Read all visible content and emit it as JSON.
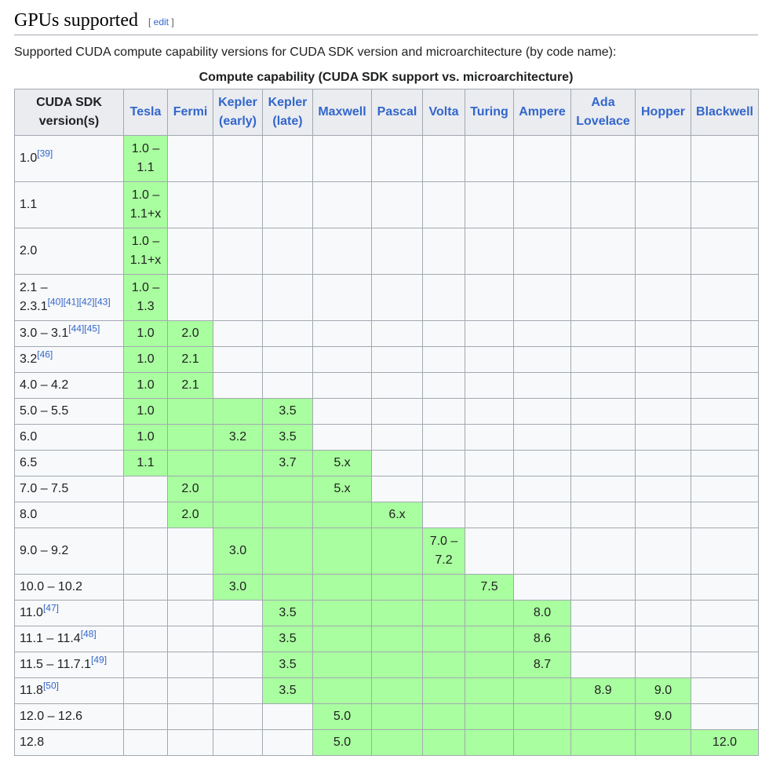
{
  "section": {
    "title": "GPUs supported",
    "edit_open": "[ ",
    "edit_label": "edit",
    "edit_close": " ]"
  },
  "intro": "Supported CUDA compute capability versions for CUDA SDK version and microarchitecture (by code name):",
  "table": {
    "caption": "Compute capability (CUDA SDK support vs. microarchitecture)",
    "header_sdk": [
      "CUDA SDK",
      "version(s)"
    ],
    "architectures": [
      [
        "Tesla"
      ],
      [
        "Fermi"
      ],
      [
        "Kepler",
        "(early)"
      ],
      [
        "Kepler",
        "(late)"
      ],
      [
        "Maxwell"
      ],
      [
        "Pascal"
      ],
      [
        "Volta"
      ],
      [
        "Turing"
      ],
      [
        "Ampere"
      ],
      [
        "Ada",
        "Lovelace"
      ],
      [
        "Hopper"
      ],
      [
        "Blackwell"
      ]
    ],
    "colors": {
      "supported": "#a9ff9f",
      "unsupported": "#f8f9fa",
      "link": "#3366cc",
      "header": "#eaecf0"
    },
    "rows": [
      {
        "sdk": [
          "1.0"
        ],
        "refs": [
          "[39]"
        ],
        "cells": [
          [
            [
              "1.0 –",
              "1.1"
            ],
            true
          ],
          [
            "",
            false
          ],
          [
            "",
            false
          ],
          [
            "",
            false
          ],
          [
            "",
            false
          ],
          [
            "",
            false
          ],
          [
            "",
            false
          ],
          [
            "",
            false
          ],
          [
            "",
            false
          ],
          [
            "",
            false
          ],
          [
            "",
            false
          ],
          [
            "",
            false
          ]
        ]
      },
      {
        "sdk": [
          "1.1"
        ],
        "refs": [],
        "cells": [
          [
            [
              "1.0 –",
              "1.1+x"
            ],
            true
          ],
          [
            "",
            false
          ],
          [
            "",
            false
          ],
          [
            "",
            false
          ],
          [
            "",
            false
          ],
          [
            "",
            false
          ],
          [
            "",
            false
          ],
          [
            "",
            false
          ],
          [
            "",
            false
          ],
          [
            "",
            false
          ],
          [
            "",
            false
          ],
          [
            "",
            false
          ]
        ]
      },
      {
        "sdk": [
          "2.0"
        ],
        "refs": [],
        "cells": [
          [
            [
              "1.0 –",
              "1.1+x"
            ],
            true
          ],
          [
            "",
            false
          ],
          [
            "",
            false
          ],
          [
            "",
            false
          ],
          [
            "",
            false
          ],
          [
            "",
            false
          ],
          [
            "",
            false
          ],
          [
            "",
            false
          ],
          [
            "",
            false
          ],
          [
            "",
            false
          ],
          [
            "",
            false
          ],
          [
            "",
            false
          ]
        ]
      },
      {
        "sdk": [
          "2.1 –",
          "2.3.1"
        ],
        "refs": [
          "[40]",
          "[41]",
          "[42]",
          "[43]"
        ],
        "cells": [
          [
            [
              "1.0 –",
              "1.3"
            ],
            true
          ],
          [
            "",
            false
          ],
          [
            "",
            false
          ],
          [
            "",
            false
          ],
          [
            "",
            false
          ],
          [
            "",
            false
          ],
          [
            "",
            false
          ],
          [
            "",
            false
          ],
          [
            "",
            false
          ],
          [
            "",
            false
          ],
          [
            "",
            false
          ],
          [
            "",
            false
          ]
        ]
      },
      {
        "sdk": [
          "3.0 – 3.1"
        ],
        "refs": [
          "[44]",
          "[45]"
        ],
        "cells": [
          [
            "1.0",
            true
          ],
          [
            "2.0",
            true
          ],
          [
            "",
            false
          ],
          [
            "",
            false
          ],
          [
            "",
            false
          ],
          [
            "",
            false
          ],
          [
            "",
            false
          ],
          [
            "",
            false
          ],
          [
            "",
            false
          ],
          [
            "",
            false
          ],
          [
            "",
            false
          ],
          [
            "",
            false
          ]
        ]
      },
      {
        "sdk": [
          "3.2"
        ],
        "refs": [
          "[46]"
        ],
        "cells": [
          [
            "1.0",
            true
          ],
          [
            "2.1",
            true
          ],
          [
            "",
            false
          ],
          [
            "",
            false
          ],
          [
            "",
            false
          ],
          [
            "",
            false
          ],
          [
            "",
            false
          ],
          [
            "",
            false
          ],
          [
            "",
            false
          ],
          [
            "",
            false
          ],
          [
            "",
            false
          ],
          [
            "",
            false
          ]
        ]
      },
      {
        "sdk": [
          "4.0 – 4.2"
        ],
        "refs": [],
        "cells": [
          [
            "1.0",
            true
          ],
          [
            "2.1",
            true
          ],
          [
            "",
            false
          ],
          [
            "",
            false
          ],
          [
            "",
            false
          ],
          [
            "",
            false
          ],
          [
            "",
            false
          ],
          [
            "",
            false
          ],
          [
            "",
            false
          ],
          [
            "",
            false
          ],
          [
            "",
            false
          ],
          [
            "",
            false
          ]
        ]
      },
      {
        "sdk": [
          "5.0 – 5.5"
        ],
        "refs": [],
        "cells": [
          [
            "1.0",
            true
          ],
          [
            "",
            true
          ],
          [
            "",
            true
          ],
          [
            "3.5",
            true
          ],
          [
            "",
            false
          ],
          [
            "",
            false
          ],
          [
            "",
            false
          ],
          [
            "",
            false
          ],
          [
            "",
            false
          ],
          [
            "",
            false
          ],
          [
            "",
            false
          ],
          [
            "",
            false
          ]
        ]
      },
      {
        "sdk": [
          "6.0"
        ],
        "refs": [],
        "cells": [
          [
            "1.0",
            true
          ],
          [
            "",
            true
          ],
          [
            "3.2",
            true
          ],
          [
            "3.5",
            true
          ],
          [
            "",
            false
          ],
          [
            "",
            false
          ],
          [
            "",
            false
          ],
          [
            "",
            false
          ],
          [
            "",
            false
          ],
          [
            "",
            false
          ],
          [
            "",
            false
          ],
          [
            "",
            false
          ]
        ]
      },
      {
        "sdk": [
          "6.5"
        ],
        "refs": [],
        "cells": [
          [
            "1.1",
            true
          ],
          [
            "",
            true
          ],
          [
            "",
            true
          ],
          [
            "3.7",
            true
          ],
          [
            "5.x",
            true
          ],
          [
            "",
            false
          ],
          [
            "",
            false
          ],
          [
            "",
            false
          ],
          [
            "",
            false
          ],
          [
            "",
            false
          ],
          [
            "",
            false
          ],
          [
            "",
            false
          ]
        ]
      },
      {
        "sdk": [
          "7.0 – 7.5"
        ],
        "refs": [],
        "cells": [
          [
            "",
            false
          ],
          [
            "2.0",
            true
          ],
          [
            "",
            true
          ],
          [
            "",
            true
          ],
          [
            "5.x",
            true
          ],
          [
            "",
            false
          ],
          [
            "",
            false
          ],
          [
            "",
            false
          ],
          [
            "",
            false
          ],
          [
            "",
            false
          ],
          [
            "",
            false
          ],
          [
            "",
            false
          ]
        ]
      },
      {
        "sdk": [
          "8.0"
        ],
        "refs": [],
        "cells": [
          [
            "",
            false
          ],
          [
            "2.0",
            true
          ],
          [
            "",
            true
          ],
          [
            "",
            true
          ],
          [
            "",
            true
          ],
          [
            "6.x",
            true
          ],
          [
            "",
            false
          ],
          [
            "",
            false
          ],
          [
            "",
            false
          ],
          [
            "",
            false
          ],
          [
            "",
            false
          ],
          [
            "",
            false
          ]
        ]
      },
      {
        "sdk": [
          "9.0 – 9.2"
        ],
        "refs": [],
        "cells": [
          [
            "",
            false
          ],
          [
            "",
            false
          ],
          [
            "3.0",
            true
          ],
          [
            "",
            true
          ],
          [
            "",
            true
          ],
          [
            "",
            true
          ],
          [
            [
              "7.0 –",
              "7.2"
            ],
            true
          ],
          [
            "",
            false
          ],
          [
            "",
            false
          ],
          [
            "",
            false
          ],
          [
            "",
            false
          ],
          [
            "",
            false
          ]
        ]
      },
      {
        "sdk": [
          "10.0 – 10.2"
        ],
        "refs": [],
        "cells": [
          [
            "",
            false
          ],
          [
            "",
            false
          ],
          [
            "3.0",
            true
          ],
          [
            "",
            true
          ],
          [
            "",
            true
          ],
          [
            "",
            true
          ],
          [
            "",
            true
          ],
          [
            "7.5",
            true
          ],
          [
            "",
            false
          ],
          [
            "",
            false
          ],
          [
            "",
            false
          ],
          [
            "",
            false
          ]
        ]
      },
      {
        "sdk": [
          "11.0"
        ],
        "refs": [
          "[47]"
        ],
        "cells": [
          [
            "",
            false
          ],
          [
            "",
            false
          ],
          [
            "",
            false
          ],
          [
            "3.5",
            true
          ],
          [
            "",
            true
          ],
          [
            "",
            true
          ],
          [
            "",
            true
          ],
          [
            "",
            true
          ],
          [
            "8.0",
            true
          ],
          [
            "",
            false
          ],
          [
            "",
            false
          ],
          [
            "",
            false
          ]
        ]
      },
      {
        "sdk": [
          "11.1 – 11.4"
        ],
        "refs": [
          "[48]"
        ],
        "cells": [
          [
            "",
            false
          ],
          [
            "",
            false
          ],
          [
            "",
            false
          ],
          [
            "3.5",
            true
          ],
          [
            "",
            true
          ],
          [
            "",
            true
          ],
          [
            "",
            true
          ],
          [
            "",
            true
          ],
          [
            "8.6",
            true
          ],
          [
            "",
            false
          ],
          [
            "",
            false
          ],
          [
            "",
            false
          ]
        ]
      },
      {
        "sdk": [
          "11.5 – 11.7.1"
        ],
        "refs": [
          "[49]"
        ],
        "cells": [
          [
            "",
            false
          ],
          [
            "",
            false
          ],
          [
            "",
            false
          ],
          [
            "3.5",
            true
          ],
          [
            "",
            true
          ],
          [
            "",
            true
          ],
          [
            "",
            true
          ],
          [
            "",
            true
          ],
          [
            "8.7",
            true
          ],
          [
            "",
            false
          ],
          [
            "",
            false
          ],
          [
            "",
            false
          ]
        ]
      },
      {
        "sdk": [
          "11.8"
        ],
        "refs": [
          "[50]"
        ],
        "cells": [
          [
            "",
            false
          ],
          [
            "",
            false
          ],
          [
            "",
            false
          ],
          [
            "3.5",
            true
          ],
          [
            "",
            true
          ],
          [
            "",
            true
          ],
          [
            "",
            true
          ],
          [
            "",
            true
          ],
          [
            "",
            true
          ],
          [
            "8.9",
            true
          ],
          [
            "9.0",
            true
          ],
          [
            "",
            false
          ]
        ]
      },
      {
        "sdk": [
          "12.0 – 12.6"
        ],
        "refs": [],
        "cells": [
          [
            "",
            false
          ],
          [
            "",
            false
          ],
          [
            "",
            false
          ],
          [
            "",
            false
          ],
          [
            "5.0",
            true
          ],
          [
            "",
            true
          ],
          [
            "",
            true
          ],
          [
            "",
            true
          ],
          [
            "",
            true
          ],
          [
            "",
            true
          ],
          [
            "9.0",
            true
          ],
          [
            "",
            false
          ]
        ]
      },
      {
        "sdk": [
          "12.8"
        ],
        "refs": [],
        "cells": [
          [
            "",
            false
          ],
          [
            "",
            false
          ],
          [
            "",
            false
          ],
          [
            "",
            false
          ],
          [
            "5.0",
            true
          ],
          [
            "",
            true
          ],
          [
            "",
            true
          ],
          [
            "",
            true
          ],
          [
            "",
            true
          ],
          [
            "",
            true
          ],
          [
            "",
            true
          ],
          [
            "12.0",
            true
          ]
        ]
      }
    ]
  }
}
